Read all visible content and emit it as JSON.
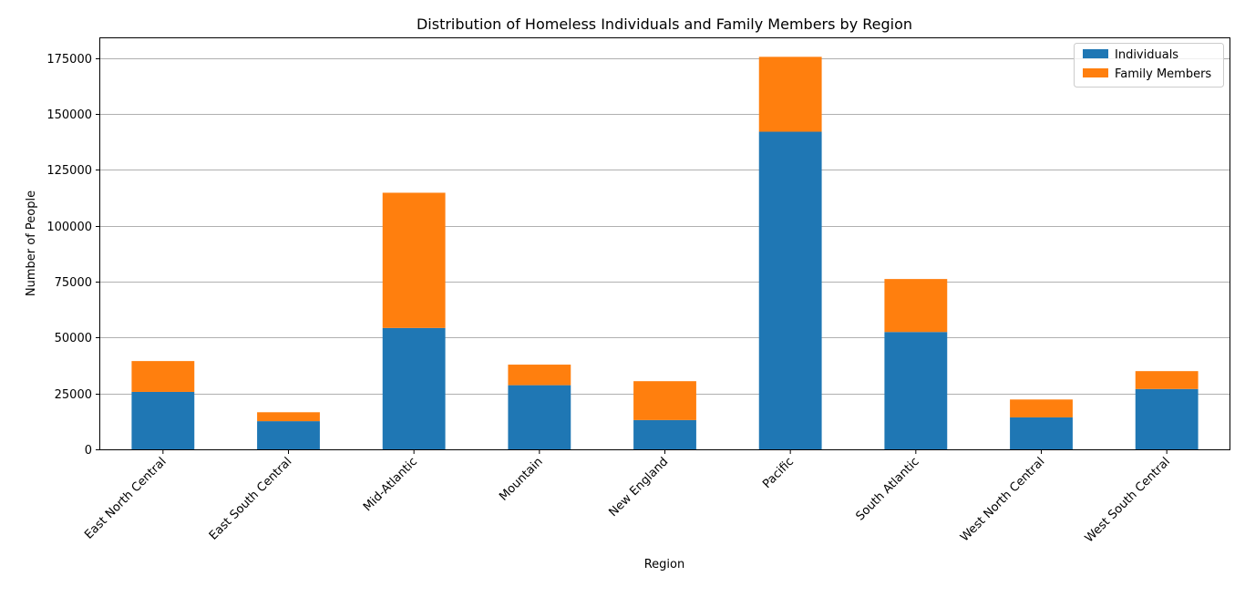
{
  "chart_data": {
    "type": "bar",
    "stacked": true,
    "title": "Distribution of Homeless Individuals and Family Members by Region",
    "xlabel": "Region",
    "ylabel": "Number of People",
    "categories": [
      "East North Central",
      "East South Central",
      "Mid-Atlantic",
      "Mountain",
      "New England",
      "Pacific",
      "South Atlantic",
      "West North Central",
      "West South Central"
    ],
    "series": [
      {
        "name": "Individuals",
        "color": "#1f77b4",
        "values": [
          25700,
          12600,
          54300,
          28700,
          13100,
          142100,
          52500,
          14300,
          27000
        ]
      },
      {
        "name": "Family Members",
        "color": "#ff7f0e",
        "values": [
          13800,
          4000,
          60500,
          9200,
          17400,
          33500,
          23700,
          8000,
          8000
        ]
      }
    ],
    "ylim": [
      0,
      183900
    ],
    "yticks": [
      0,
      25000,
      50000,
      75000,
      100000,
      125000,
      150000,
      175000
    ],
    "grid": "horizontal",
    "legend_position": "top-right"
  }
}
